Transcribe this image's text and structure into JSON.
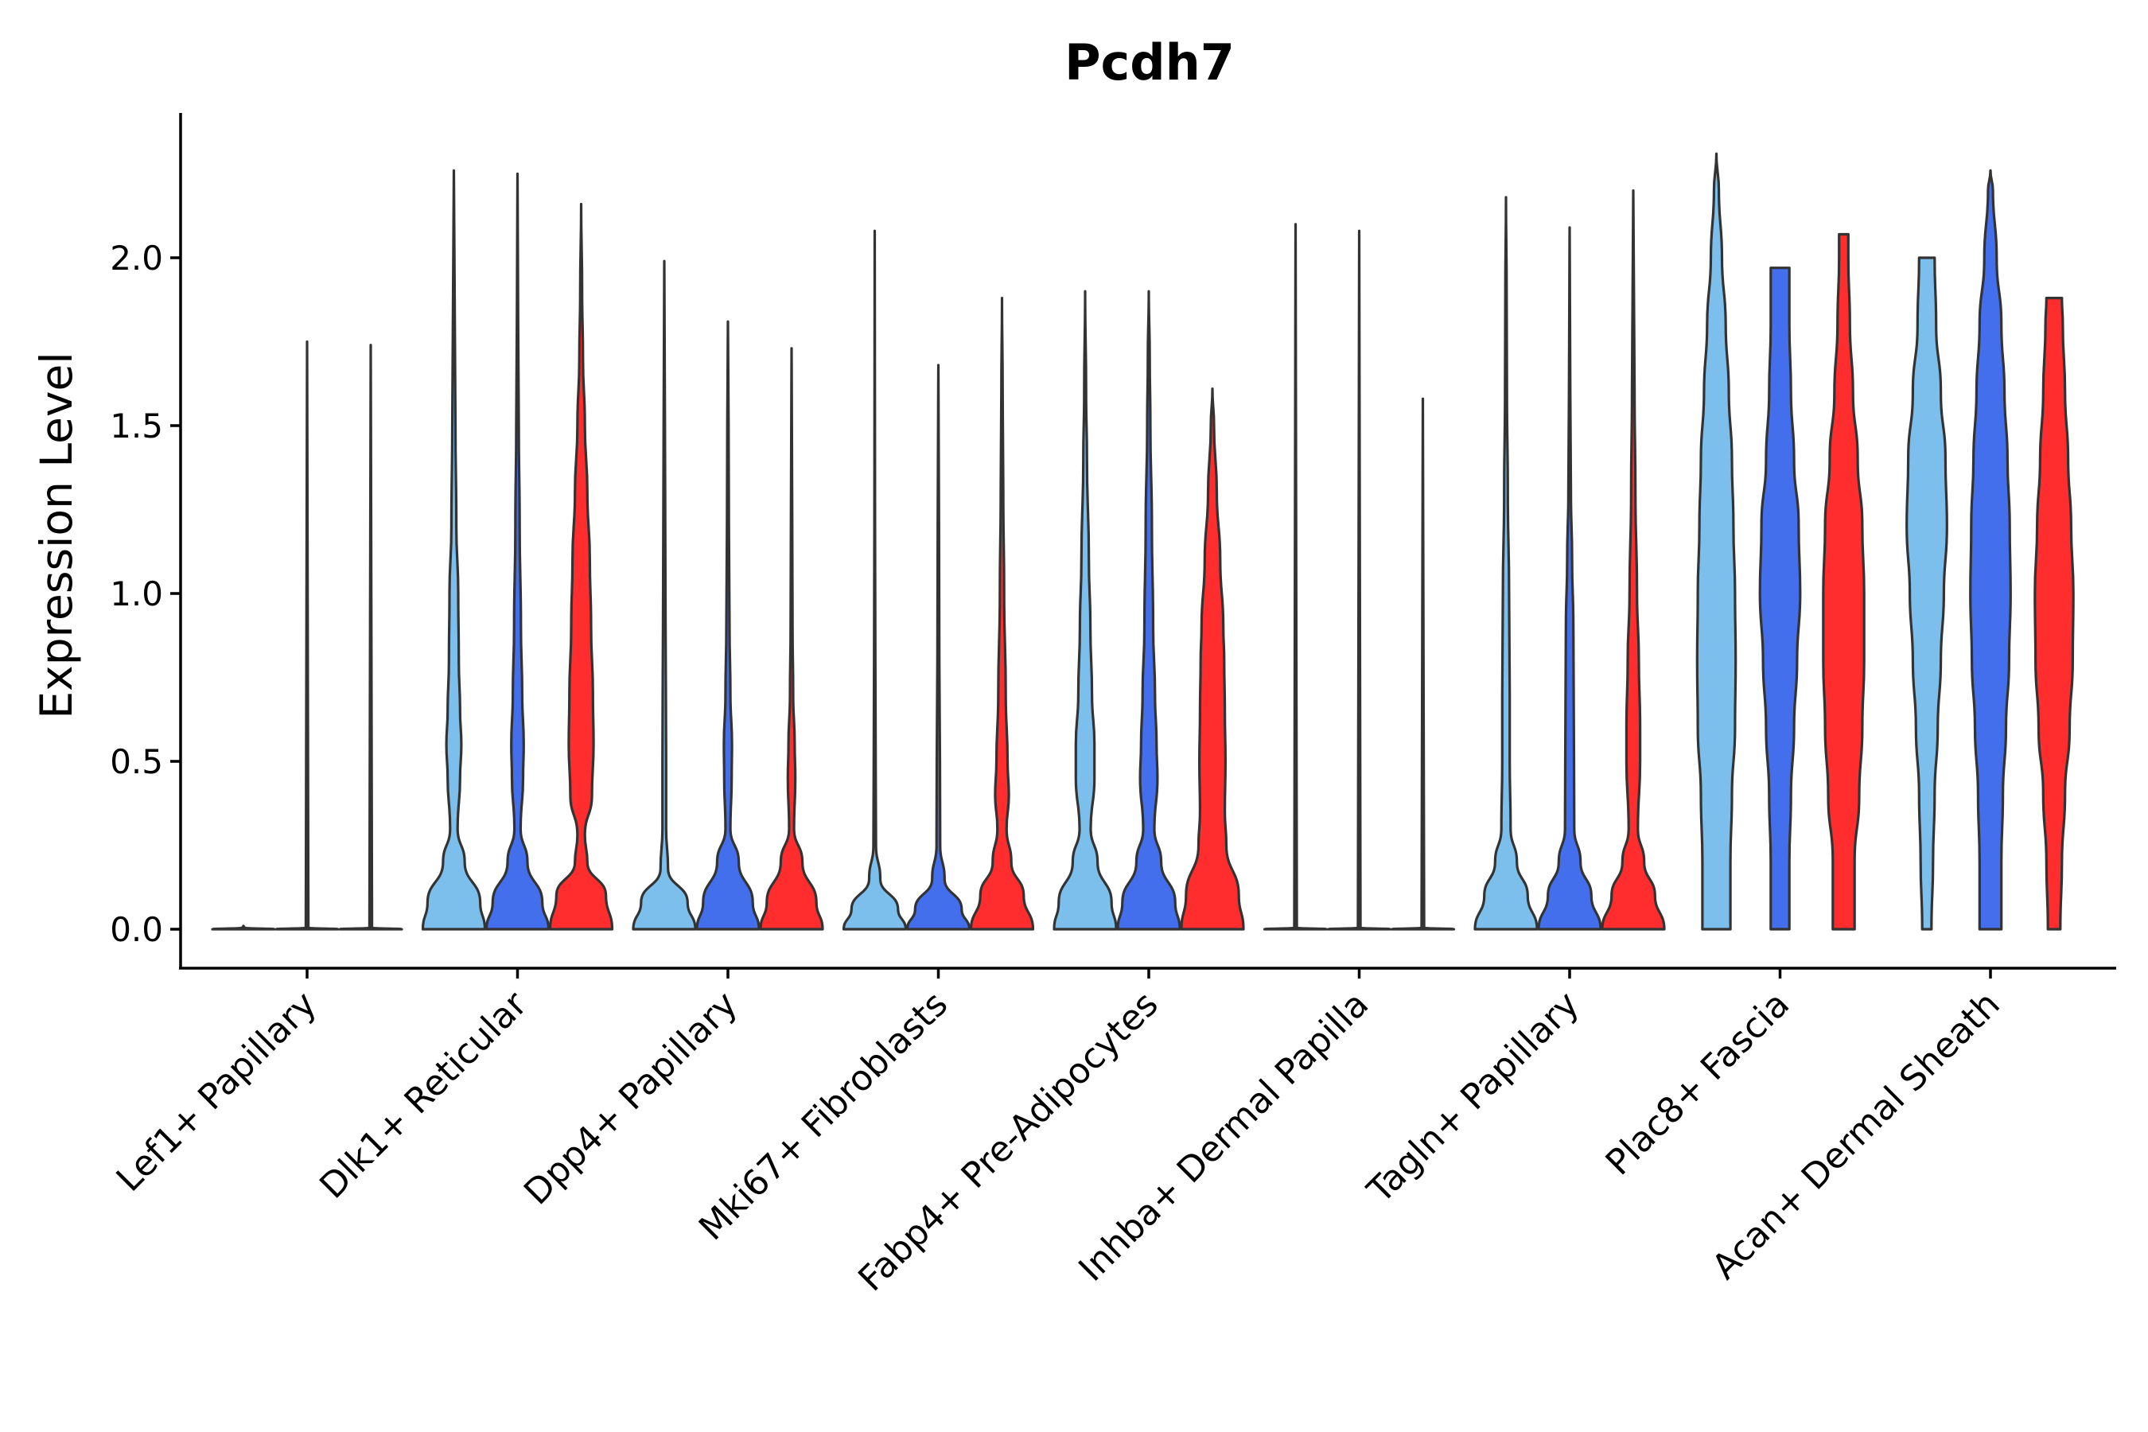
{
  "chart_data": {
    "type": "violin",
    "title": "Pcdh7",
    "xlabel": "",
    "ylabel": "Expression Level",
    "ylim": [
      -0.12,
      2.42
    ],
    "yticks": [
      0.0,
      0.5,
      1.0,
      1.5,
      2.0
    ],
    "ytick_labels": [
      "0.0",
      "0.5",
      "1.0",
      "1.5",
      "2.0"
    ],
    "grid": false,
    "legend": "none",
    "series_colors": [
      "#7dbfec",
      "#436fec",
      "#ff2d2d"
    ],
    "categories": [
      "Lef1+ Papillary",
      "Dlk1+ Reticular",
      "Dpp4+ Papillary",
      "Mki67+ Fibroblasts",
      "Fabp4+ Pre-Adipocytes",
      "Inhba+ Dermal Papilla",
      "Tagln+ Papillary",
      "Plac8+ Fascia",
      "Acan+ Dermal Sheath"
    ],
    "violins": [
      {
        "category": "Lef1+ Papillary",
        "series": 0,
        "max": 0.0,
        "profile": [
          [
            0,
            1
          ],
          [
            0.004,
            0.04
          ],
          [
            0.01,
            0
          ]
        ]
      },
      {
        "category": "Lef1+ Papillary",
        "series": 1,
        "max": 1.75,
        "profile": [
          [
            0,
            1
          ],
          [
            0.004,
            0.04
          ],
          [
            1.75,
            0
          ]
        ]
      },
      {
        "category": "Lef1+ Papillary",
        "series": 2,
        "max": 1.74,
        "profile": [
          [
            0,
            1
          ],
          [
            0.004,
            0.04
          ],
          [
            1.74,
            0
          ]
        ]
      },
      {
        "category": "Dlk1+ Reticular",
        "series": 0,
        "max": 2.26,
        "profile": [
          [
            0,
            1
          ],
          [
            0.08,
            0.85
          ],
          [
            0.2,
            0.35
          ],
          [
            0.3,
            0.12
          ],
          [
            0.45,
            0.2
          ],
          [
            0.55,
            0.24
          ],
          [
            0.65,
            0.2
          ],
          [
            0.8,
            0.16
          ],
          [
            1.0,
            0.14
          ],
          [
            1.2,
            0.08
          ],
          [
            1.5,
            0.05
          ],
          [
            1.8,
            0.03
          ],
          [
            2.26,
            0
          ]
        ]
      },
      {
        "category": "Dlk1+ Reticular",
        "series": 1,
        "max": 2.25,
        "profile": [
          [
            0,
            1
          ],
          [
            0.08,
            0.8
          ],
          [
            0.2,
            0.32
          ],
          [
            0.3,
            0.1
          ],
          [
            0.45,
            0.18
          ],
          [
            0.55,
            0.2
          ],
          [
            0.7,
            0.15
          ],
          [
            0.9,
            0.11
          ],
          [
            1.2,
            0.07
          ],
          [
            1.5,
            0.04
          ],
          [
            1.8,
            0.02
          ],
          [
            2.25,
            0
          ]
        ]
      },
      {
        "category": "Dlk1+ Reticular",
        "series": 2,
        "max": 2.16,
        "profile": [
          [
            0,
            1
          ],
          [
            0.1,
            0.8
          ],
          [
            0.2,
            0.2
          ],
          [
            0.28,
            0.12
          ],
          [
            0.4,
            0.35
          ],
          [
            0.55,
            0.4
          ],
          [
            0.7,
            0.38
          ],
          [
            0.9,
            0.32
          ],
          [
            1.1,
            0.28
          ],
          [
            1.3,
            0.2
          ],
          [
            1.5,
            0.12
          ],
          [
            1.7,
            0.06
          ],
          [
            1.9,
            0.03
          ],
          [
            2.16,
            0
          ]
        ]
      },
      {
        "category": "Dpp4+ Papillary",
        "series": 0,
        "max": 1.99,
        "profile": [
          [
            0,
            1
          ],
          [
            0.08,
            0.75
          ],
          [
            0.18,
            0.12
          ],
          [
            0.3,
            0.06
          ],
          [
            0.5,
            0.06
          ],
          [
            0.7,
            0.05
          ],
          [
            0.9,
            0.04
          ],
          [
            1.2,
            0.03
          ],
          [
            1.5,
            0.02
          ],
          [
            1.99,
            0
          ]
        ]
      },
      {
        "category": "Dpp4+ Papillary",
        "series": 1,
        "max": 1.81,
        "profile": [
          [
            0,
            1
          ],
          [
            0.08,
            0.8
          ],
          [
            0.2,
            0.35
          ],
          [
            0.3,
            0.08
          ],
          [
            0.45,
            0.12
          ],
          [
            0.55,
            0.13
          ],
          [
            0.7,
            0.08
          ],
          [
            0.9,
            0.05
          ],
          [
            1.2,
            0.03
          ],
          [
            1.5,
            0.02
          ],
          [
            1.81,
            0
          ]
        ]
      },
      {
        "category": "Dpp4+ Papillary",
        "series": 2,
        "max": 1.73,
        "profile": [
          [
            0,
            1
          ],
          [
            0.08,
            0.8
          ],
          [
            0.2,
            0.35
          ],
          [
            0.3,
            0.08
          ],
          [
            0.45,
            0.12
          ],
          [
            0.55,
            0.1
          ],
          [
            0.7,
            0.05
          ],
          [
            0.9,
            0.03
          ],
          [
            1.2,
            0.02
          ],
          [
            1.73,
            0
          ]
        ]
      },
      {
        "category": "Mki67+ Fibroblasts",
        "series": 0,
        "max": 2.08,
        "profile": [
          [
            0,
            1
          ],
          [
            0.06,
            0.75
          ],
          [
            0.15,
            0.18
          ],
          [
            0.25,
            0.04
          ],
          [
            0.5,
            0.03
          ],
          [
            0.8,
            0.02
          ],
          [
            1.2,
            0.01
          ],
          [
            2.08,
            0
          ]
        ]
      },
      {
        "category": "Mki67+ Fibroblasts",
        "series": 1,
        "max": 1.68,
        "profile": [
          [
            0,
            1
          ],
          [
            0.06,
            0.75
          ],
          [
            0.15,
            0.2
          ],
          [
            0.25,
            0.06
          ],
          [
            0.5,
            0.05
          ],
          [
            0.8,
            0.03
          ],
          [
            1.2,
            0.02
          ],
          [
            1.68,
            0
          ]
        ]
      },
      {
        "category": "Mki67+ Fibroblasts",
        "series": 2,
        "max": 1.88,
        "profile": [
          [
            0,
            1
          ],
          [
            0.1,
            0.7
          ],
          [
            0.2,
            0.3
          ],
          [
            0.3,
            0.15
          ],
          [
            0.4,
            0.22
          ],
          [
            0.5,
            0.18
          ],
          [
            0.7,
            0.12
          ],
          [
            1.0,
            0.07
          ],
          [
            1.3,
            0.04
          ],
          [
            1.6,
            0.02
          ],
          [
            1.88,
            0
          ]
        ]
      },
      {
        "category": "Fabp4+ Pre-Adipocytes",
        "series": 0,
        "max": 1.9,
        "profile": [
          [
            0,
            1
          ],
          [
            0.08,
            0.85
          ],
          [
            0.2,
            0.4
          ],
          [
            0.3,
            0.18
          ],
          [
            0.45,
            0.3
          ],
          [
            0.55,
            0.3
          ],
          [
            0.7,
            0.22
          ],
          [
            0.9,
            0.17
          ],
          [
            1.1,
            0.12
          ],
          [
            1.4,
            0.06
          ],
          [
            1.6,
            0.03
          ],
          [
            1.9,
            0
          ]
        ]
      },
      {
        "category": "Fabp4+ Pre-Adipocytes",
        "series": 1,
        "max": 1.9,
        "profile": [
          [
            0,
            1
          ],
          [
            0.08,
            0.85
          ],
          [
            0.2,
            0.4
          ],
          [
            0.3,
            0.18
          ],
          [
            0.45,
            0.28
          ],
          [
            0.55,
            0.25
          ],
          [
            0.7,
            0.2
          ],
          [
            0.9,
            0.14
          ],
          [
            1.2,
            0.1
          ],
          [
            1.5,
            0.05
          ],
          [
            1.7,
            0.03
          ],
          [
            1.9,
            0
          ]
        ]
      },
      {
        "category": "Fabp4+ Pre-Adipocytes",
        "series": 2,
        "max": 1.61,
        "profile": [
          [
            0,
            1
          ],
          [
            0.1,
            0.85
          ],
          [
            0.25,
            0.45
          ],
          [
            0.35,
            0.4
          ],
          [
            0.5,
            0.42
          ],
          [
            0.65,
            0.4
          ],
          [
            0.8,
            0.38
          ],
          [
            0.9,
            0.35
          ],
          [
            1.1,
            0.25
          ],
          [
            1.3,
            0.14
          ],
          [
            1.5,
            0.05
          ],
          [
            1.61,
            0
          ]
        ]
      },
      {
        "category": "Inhba+ Dermal Papilla",
        "series": 0,
        "max": 2.1,
        "profile": [
          [
            0,
            1
          ],
          [
            0.004,
            0.04
          ],
          [
            2.1,
            0
          ]
        ]
      },
      {
        "category": "Inhba+ Dermal Papilla",
        "series": 1,
        "max": 2.08,
        "profile": [
          [
            0,
            1
          ],
          [
            0.004,
            0.04
          ],
          [
            2.08,
            0
          ]
        ]
      },
      {
        "category": "Inhba+ Dermal Papilla",
        "series": 2,
        "max": 1.58,
        "profile": [
          [
            0,
            1
          ],
          [
            0.004,
            0.04
          ],
          [
            1.58,
            0
          ]
        ]
      },
      {
        "category": "Tagln+ Papillary",
        "series": 0,
        "max": 2.18,
        "profile": [
          [
            0,
            1
          ],
          [
            0.1,
            0.7
          ],
          [
            0.2,
            0.35
          ],
          [
            0.3,
            0.15
          ],
          [
            0.5,
            0.12
          ],
          [
            0.7,
            0.12
          ],
          [
            1.0,
            0.1
          ],
          [
            1.3,
            0.06
          ],
          [
            1.6,
            0.03
          ],
          [
            1.9,
            0.02
          ],
          [
            2.18,
            0
          ]
        ]
      },
      {
        "category": "Tagln+ Papillary",
        "series": 1,
        "max": 2.09,
        "profile": [
          [
            0,
            1
          ],
          [
            0.1,
            0.7
          ],
          [
            0.2,
            0.35
          ],
          [
            0.3,
            0.15
          ],
          [
            0.5,
            0.14
          ],
          [
            0.7,
            0.13
          ],
          [
            0.9,
            0.12
          ],
          [
            1.1,
            0.08
          ],
          [
            1.3,
            0.04
          ],
          [
            1.6,
            0.02
          ],
          [
            2.09,
            0
          ]
        ]
      },
      {
        "category": "Tagln+ Papillary",
        "series": 2,
        "max": 2.2,
        "profile": [
          [
            0,
            1
          ],
          [
            0.1,
            0.7
          ],
          [
            0.2,
            0.35
          ],
          [
            0.3,
            0.15
          ],
          [
            0.5,
            0.22
          ],
          [
            0.6,
            0.22
          ],
          [
            0.8,
            0.18
          ],
          [
            1.0,
            0.12
          ],
          [
            1.3,
            0.07
          ],
          [
            1.6,
            0.04
          ],
          [
            1.9,
            0.02
          ],
          [
            2.2,
            0
          ]
        ]
      },
      {
        "category": "Plac8+ Fascia",
        "series": 0,
        "max": 2.31,
        "profile": [
          [
            0,
            0.45
          ],
          [
            0.2,
            0.45
          ],
          [
            0.4,
            0.5
          ],
          [
            0.6,
            0.6
          ],
          [
            0.8,
            0.62
          ],
          [
            1.0,
            0.6
          ],
          [
            1.2,
            0.55
          ],
          [
            1.4,
            0.5
          ],
          [
            1.6,
            0.4
          ],
          [
            1.8,
            0.3
          ],
          [
            2.0,
            0.18
          ],
          [
            2.2,
            0.08
          ],
          [
            2.31,
            0
          ]
        ]
      },
      {
        "category": "Plac8+ Fascia",
        "series": 1,
        "max": 1.97,
        "profile": [
          [
            0,
            0.3
          ],
          [
            0.2,
            0.3
          ],
          [
            0.4,
            0.35
          ],
          [
            0.6,
            0.45
          ],
          [
            0.8,
            0.55
          ],
          [
            1.0,
            0.65
          ],
          [
            1.2,
            0.6
          ],
          [
            1.4,
            0.45
          ],
          [
            1.6,
            0.35
          ],
          [
            1.8,
            0.3
          ],
          [
            1.97,
            0.3
          ]
        ]
      },
      {
        "category": "Plac8+ Fascia",
        "series": 2,
        "max": 2.07,
        "profile": [
          [
            0,
            0.35
          ],
          [
            0.2,
            0.35
          ],
          [
            0.4,
            0.5
          ],
          [
            0.6,
            0.6
          ],
          [
            0.8,
            0.66
          ],
          [
            1.0,
            0.66
          ],
          [
            1.2,
            0.6
          ],
          [
            1.4,
            0.45
          ],
          [
            1.6,
            0.3
          ],
          [
            1.8,
            0.2
          ],
          [
            2.0,
            0.15
          ],
          [
            2.07,
            0.15
          ]
        ]
      },
      {
        "category": "Acan+ Dermal Sheath",
        "series": 0,
        "max": 2.0,
        "profile": [
          [
            0,
            0.15
          ],
          [
            0.2,
            0.2
          ],
          [
            0.4,
            0.25
          ],
          [
            0.6,
            0.35
          ],
          [
            0.8,
            0.45
          ],
          [
            1.0,
            0.55
          ],
          [
            1.2,
            0.65
          ],
          [
            1.4,
            0.6
          ],
          [
            1.6,
            0.45
          ],
          [
            1.8,
            0.3
          ],
          [
            2.0,
            0.25
          ]
        ]
      },
      {
        "category": "Acan+ Dermal Sheath",
        "series": 1,
        "max": 2.26,
        "profile": [
          [
            0,
            0.35
          ],
          [
            0.2,
            0.35
          ],
          [
            0.4,
            0.4
          ],
          [
            0.6,
            0.5
          ],
          [
            0.8,
            0.6
          ],
          [
            1.0,
            0.65
          ],
          [
            1.2,
            0.62
          ],
          [
            1.4,
            0.55
          ],
          [
            1.6,
            0.45
          ],
          [
            1.8,
            0.35
          ],
          [
            2.0,
            0.2
          ],
          [
            2.2,
            0.08
          ],
          [
            2.26,
            0
          ]
        ]
      },
      {
        "category": "Acan+ Dermal Sheath",
        "series": 2,
        "max": 1.88,
        "profile": [
          [
            0,
            0.2
          ],
          [
            0.2,
            0.25
          ],
          [
            0.4,
            0.35
          ],
          [
            0.6,
            0.5
          ],
          [
            0.8,
            0.6
          ],
          [
            1.0,
            0.62
          ],
          [
            1.2,
            0.55
          ],
          [
            1.4,
            0.45
          ],
          [
            1.6,
            0.35
          ],
          [
            1.8,
            0.28
          ],
          [
            1.88,
            0.25
          ]
        ]
      }
    ]
  }
}
